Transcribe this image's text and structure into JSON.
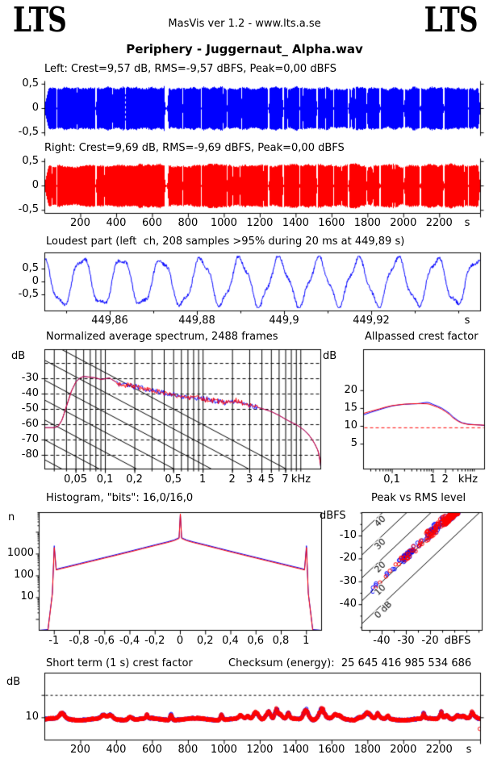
{
  "header": {
    "lts_left": "LTS",
    "app_line": "MasVis ver 1.2 - www.lts.a.se",
    "lts_right": "LTS",
    "title": "Periphery - Juggernaut_ Alpha.wav"
  },
  "colors": {
    "left": "#0000ff",
    "right": "#ff0000",
    "axis": "#000000",
    "ref_dashed": "#ff0000",
    "marker": "#ffffff"
  },
  "labels": {
    "left_channel": "Left: Crest=9,57 dB, RMS=-9,57 dBFS, Peak=0,00 dBFS",
    "right_channel": "Right: Crest=9,69 dB, RMS=-9,69 dBFS, Peak=0,00 dBFS",
    "loudest": "Loudest part (left  ch, 208 samples >95% during 20 ms at 449,89 s)",
    "spectrum_title": "Normalized average spectrum, 2488 frames",
    "allpassed_title": "Allpassed crest factor",
    "histogram_title": "Histogram, \"bits\": 16,0/16,0",
    "peak_title": "Peak vs RMS level",
    "short_term_title": "Short term (1 s) crest factor",
    "checksum": "Checksum (energy):  25 645 416 985 534 686",
    "units": {
      "spectrum": "dB",
      "allpassed": "dB",
      "histogram": "n",
      "peak": "dBFS",
      "short_term": "dB"
    }
  },
  "chart_data": [
    {
      "id": "left_waveform",
      "type": "waveform",
      "channel": "Left",
      "color_key": "left",
      "crest_db": 9.57,
      "rms_dbfs": -9.57,
      "peak_dbfs": 0.0,
      "x_range_s": [
        0,
        2428
      ],
      "y_ticks": {
        "values": [
          0.5,
          0,
          -0.5
        ],
        "labels": [
          "0,5",
          "0",
          "-0,5"
        ]
      },
      "marker_s": 449.89,
      "fade_in_s": 25,
      "fade_out_s": 10,
      "gaps_s": [
        [
          70,
          5
        ],
        [
          287,
          9
        ],
        [
          680,
          24
        ],
        [
          770,
          4
        ],
        [
          875,
          7
        ],
        [
          1020,
          5
        ],
        [
          1249,
          11
        ],
        [
          1332,
          9
        ],
        [
          1422,
          6
        ],
        [
          1521,
          10
        ],
        [
          1611,
          6
        ],
        [
          1694,
          11
        ],
        [
          1798,
          6
        ],
        [
          1871,
          10
        ],
        [
          2005,
          7
        ],
        [
          2095,
          11
        ],
        [
          2226,
          9
        ],
        [
          2362,
          7
        ]
      ],
      "seed": 11
    },
    {
      "id": "right_waveform",
      "type": "waveform",
      "channel": "Right",
      "color_key": "right",
      "crest_db": 9.69,
      "rms_dbfs": -9.69,
      "peak_dbfs": 0.0,
      "x_range_s": [
        0,
        2428
      ],
      "y_ticks": {
        "values": [
          0.5,
          0,
          -0.5
        ],
        "labels": [
          "0,5",
          "0",
          "-0,5"
        ]
      },
      "x_ticks": {
        "values": [
          200,
          400,
          600,
          800,
          1000,
          1200,
          1400,
          1600,
          1800,
          2000,
          2200
        ],
        "labels": [
          "200",
          "400",
          "600",
          "800",
          "1000",
          "1200",
          "1400",
          "1600",
          "1800",
          "2000",
          "2200"
        ],
        "unit": "s"
      },
      "fade_in_s": 25,
      "fade_out_s": 10,
      "gaps_s": [
        [
          70,
          5
        ],
        [
          287,
          9
        ],
        [
          680,
          24
        ],
        [
          770,
          4
        ],
        [
          875,
          7
        ],
        [
          1020,
          5
        ],
        [
          1249,
          11
        ],
        [
          1332,
          9
        ],
        [
          1422,
          6
        ],
        [
          1521,
          10
        ],
        [
          1611,
          6
        ],
        [
          1694,
          11
        ],
        [
          1798,
          6
        ],
        [
          1871,
          10
        ],
        [
          2005,
          7
        ],
        [
          2095,
          11
        ],
        [
          2226,
          9
        ],
        [
          2362,
          7
        ]
      ],
      "seed": 22
    },
    {
      "id": "loudest_part",
      "type": "line",
      "color_key": "left",
      "samples_over_threshold": 208,
      "threshold": ">95%",
      "window_ms": 20,
      "at_s": 449.89,
      "x_range_s": [
        449.845,
        449.945
      ],
      "x_ticks": {
        "values": [
          449.86,
          449.88,
          449.9,
          449.92
        ],
        "labels": [
          "449,86",
          "449,88",
          "449,9",
          "449,92"
        ],
        "unit": "s"
      },
      "y_ticks": {
        "values": [
          0.5,
          0,
          -0.5
        ],
        "labels": [
          "0,5",
          "0",
          "-0,5"
        ]
      },
      "seed": 7
    },
    {
      "id": "spectrum",
      "type": "spectrum",
      "frames": 2488,
      "x_range_khz": [
        0.024,
        16
      ],
      "y_range_db": [
        -11,
        -89
      ],
      "x_ticks": {
        "values": [
          0.05,
          0.1,
          0.2,
          0.5,
          1,
          2,
          3,
          4,
          5,
          7
        ],
        "labels": [
          "0,05",
          "0,1",
          "0,2",
          "0,5",
          "1",
          "2",
          "3",
          "4",
          "5",
          "7"
        ],
        "unit": "kHz"
      },
      "y_ticks": {
        "values": [
          -30,
          -40,
          -50,
          -60,
          -70,
          -80
        ],
        "labels": [
          "-30",
          "-40",
          "-50",
          "-60",
          "-70",
          "-80"
        ]
      },
      "grid": {
        "h_dashed_db": [
          -20,
          -30,
          -40,
          -50,
          -60,
          -70,
          -80
        ],
        "diag_slope_db_per_decade": -34,
        "diag_spacing_db": 13
      },
      "noise_band_khz": [
        0.13,
        3.6
      ],
      "noise_db": 2.2,
      "curve_db": [
        [
          0.024,
          -62
        ],
        [
          0.03,
          -62
        ],
        [
          0.033,
          -61
        ],
        [
          0.036,
          -57
        ],
        [
          0.04,
          -48
        ],
        [
          0.045,
          -38
        ],
        [
          0.05,
          -32
        ],
        [
          0.055,
          -29.5
        ],
        [
          0.06,
          -28.5
        ],
        [
          0.07,
          -29
        ],
        [
          0.08,
          -29.5
        ],
        [
          0.09,
          -30.5
        ],
        [
          0.1,
          -30
        ],
        [
          0.11,
          -29.5
        ],
        [
          0.12,
          -31
        ],
        [
          0.14,
          -33.5
        ],
        [
          0.16,
          -34.5
        ],
        [
          0.18,
          -34.5
        ],
        [
          0.2,
          -35
        ],
        [
          0.25,
          -36.5
        ],
        [
          0.3,
          -37.5
        ],
        [
          0.35,
          -38.5
        ],
        [
          0.4,
          -39.5
        ],
        [
          0.5,
          -40.5
        ],
        [
          0.6,
          -41.5
        ],
        [
          0.7,
          -42
        ],
        [
          0.8,
          -42.5
        ],
        [
          0.9,
          -43
        ],
        [
          1,
          -43
        ],
        [
          1.2,
          -44
        ],
        [
          1.5,
          -45
        ],
        [
          1.8,
          -45.5
        ],
        [
          2,
          -45
        ],
        [
          2.3,
          -44.5
        ],
        [
          2.6,
          -46
        ],
        [
          3,
          -47.5
        ],
        [
          3.5,
          -48.5
        ],
        [
          4,
          -49.5
        ],
        [
          4.5,
          -50.5
        ],
        [
          5,
          -51.5
        ],
        [
          6,
          -54
        ],
        [
          7,
          -56.5
        ],
        [
          8,
          -58.5
        ],
        [
          9,
          -60
        ],
        [
          10,
          -62
        ],
        [
          11,
          -64
        ],
        [
          12,
          -66.5
        ],
        [
          13,
          -69.5
        ],
        [
          14,
          -73
        ],
        [
          15,
          -77
        ],
        [
          15.6,
          -82
        ],
        [
          16,
          -87.5
        ]
      ],
      "series": [
        {
          "name": "left",
          "color_key": "left",
          "seed": 31
        },
        {
          "name": "right",
          "color_key": "right",
          "seed": 32
        }
      ]
    },
    {
      "id": "allpassed_crest",
      "type": "crest_lines",
      "x_range_khz": [
        0.02,
        17.8
      ],
      "y_range_db": [
        -2,
        31.5
      ],
      "x_ticks": {
        "values": [
          0.1,
          1,
          2
        ],
        "labels": [
          "0,1",
          "1",
          "2"
        ],
        "unit": "kHz"
      },
      "y_ticks": {
        "values": [
          5,
          10,
          15,
          20
        ],
        "labels": [
          "5",
          "10",
          "15",
          "20"
        ]
      },
      "ref_dashed_db": 9.57,
      "series": [
        {
          "name": "left",
          "color_key": "left",
          "points": [
            [
              0.02,
              13.2
            ],
            [
              0.03,
              13.9
            ],
            [
              0.05,
              14.7
            ],
            [
              0.07,
              15.2
            ],
            [
              0.1,
              15.7
            ],
            [
              0.15,
              16.0
            ],
            [
              0.2,
              16.15
            ],
            [
              0.3,
              16.25
            ],
            [
              0.4,
              16.3
            ],
            [
              0.5,
              16.45
            ],
            [
              0.6,
              16.6
            ],
            [
              0.7,
              16.7
            ],
            [
              0.8,
              16.6
            ],
            [
              1,
              16.1
            ],
            [
              1.3,
              15.6
            ],
            [
              1.6,
              15.1
            ],
            [
              2,
              14.4
            ],
            [
              2.5,
              13.6
            ],
            [
              3,
              12.7
            ],
            [
              4,
              11.6
            ],
            [
              5,
              11.0
            ],
            [
              7,
              10.6
            ],
            [
              10,
              10.45
            ],
            [
              14,
              10.35
            ],
            [
              17.8,
              10.2
            ]
          ]
        },
        {
          "name": "right",
          "color_key": "right",
          "points": [
            [
              0.02,
              13.6
            ],
            [
              0.03,
              14.2
            ],
            [
              0.05,
              14.9
            ],
            [
              0.07,
              15.4
            ],
            [
              0.1,
              15.8
            ],
            [
              0.15,
              16.05
            ],
            [
              0.2,
              16.2
            ],
            [
              0.3,
              16.3
            ],
            [
              0.4,
              16.35
            ],
            [
              0.5,
              16.35
            ],
            [
              0.7,
              16.3
            ],
            [
              0.8,
              16.2
            ],
            [
              1,
              15.8
            ],
            [
              1.3,
              15.3
            ],
            [
              1.6,
              14.8
            ],
            [
              2,
              14.1
            ],
            [
              2.5,
              13.3
            ],
            [
              3,
              12.4
            ],
            [
              4,
              11.4
            ],
            [
              5,
              10.9
            ],
            [
              7,
              10.5
            ],
            [
              10,
              10.4
            ],
            [
              14,
              10.35
            ],
            [
              17.8,
              10.3
            ]
          ]
        }
      ]
    },
    {
      "id": "histogram",
      "type": "histogram",
      "bits": "16,0/16,0",
      "x_range": [
        -1.12,
        1.12
      ],
      "y_range_log": [
        0.316,
        80000
      ],
      "x_ticks": {
        "values": [
          -1,
          -0.8,
          -0.6,
          -0.4,
          -0.2,
          0,
          0.2,
          0.4,
          0.6,
          0.8,
          1
        ],
        "labels": [
          "-1",
          "-0,8",
          "-0,6",
          "-0,4",
          "-0,2",
          "0",
          "0,2",
          "0,4",
          "0,6",
          "0,8",
          "1"
        ]
      },
      "y_ticks": {
        "values": [
          10,
          100,
          1000
        ],
        "labels": [
          "10",
          "100",
          "1000"
        ]
      },
      "center_spike_n": 70000,
      "base_points": [
        [
          -1.05,
          0.32
        ],
        [
          -1.015,
          15
        ],
        [
          -1.0,
          2000
        ],
        [
          -0.985,
          185
        ],
        [
          -0.95,
          210
        ],
        [
          -0.9,
          245
        ],
        [
          -0.8,
          340
        ],
        [
          -0.7,
          470
        ],
        [
          -0.6,
          650
        ],
        [
          -0.5,
          900
        ],
        [
          -0.4,
          1250
        ],
        [
          -0.3,
          1750
        ],
        [
          -0.2,
          2450
        ],
        [
          -0.1,
          3400
        ],
        [
          -0.05,
          4100
        ],
        [
          -0.01,
          5200
        ],
        [
          0,
          7500
        ],
        [
          0.01,
          5200
        ],
        [
          0.05,
          4100
        ],
        [
          0.1,
          3400
        ],
        [
          0.2,
          2450
        ],
        [
          0.3,
          1750
        ],
        [
          0.4,
          1250
        ],
        [
          0.5,
          900
        ],
        [
          0.6,
          650
        ],
        [
          0.7,
          470
        ],
        [
          0.8,
          340
        ],
        [
          0.9,
          245
        ],
        [
          0.95,
          210
        ],
        [
          0.985,
          185
        ],
        [
          1.0,
          2000
        ],
        [
          1.015,
          15
        ],
        [
          1.05,
          0.32
        ]
      ],
      "series": [
        {
          "name": "left",
          "color_key": "left",
          "scale": 1.08,
          "edge_spike_n": 2400
        },
        {
          "name": "right",
          "color_key": "right",
          "scale": 1.0,
          "edge_spike_n": 2000
        }
      ]
    },
    {
      "id": "peak_vs_rms",
      "type": "scatter",
      "x_range_dbfs": [
        -48.3,
        1.3
      ],
      "y_range_dbfs": [
        -51.2,
        0.2
      ],
      "x_ticks": {
        "values": [
          -40,
          -30,
          -20
        ],
        "labels": [
          "-40",
          "-30",
          "-20"
        ],
        "unit": "dBFS"
      },
      "y_ticks": {
        "values": [
          -10,
          -20,
          -30,
          -40
        ],
        "labels": [
          "-10",
          "-20",
          "-30",
          "-40"
        ]
      },
      "diagonals": {
        "crest_db": [
          0,
          10,
          20,
          30,
          40
        ],
        "labels": [
          "0 dB",
          "10",
          "20",
          "30",
          "40"
        ]
      },
      "n_points_per_channel": 260,
      "seed": 77
    },
    {
      "id": "short_term_crest",
      "type": "time_scatter",
      "checksum_energy": "25 645 416 985 534 686",
      "x_range_s": [
        0,
        2428
      ],
      "x_ticks": {
        "values": [
          200,
          400,
          600,
          800,
          1000,
          1200,
          1400,
          1600,
          1800,
          2000,
          2200
        ],
        "labels": [
          "200",
          "400",
          "600",
          "800",
          "1000",
          "1200",
          "1400",
          "1600",
          "1800",
          "2000",
          "2200"
        ],
        "unit": "s"
      },
      "y_range_db": [
        0,
        30
      ],
      "y_ticks": {
        "values": [
          10,
          20
        ],
        "labels": [
          "10",
          ""
        ]
      },
      "ref_dashed_db": 20,
      "frame_step_s": 2,
      "seed": 91,
      "outlier": {
        "t_s": 2424,
        "v_db": 5.0,
        "channel": "right"
      }
    }
  ]
}
